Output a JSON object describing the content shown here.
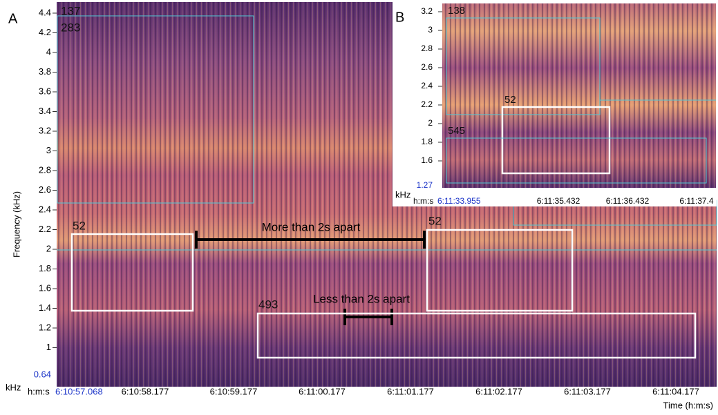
{
  "panel_a": {
    "label": "A",
    "y_axis_title": "Frequency (kHz)",
    "y_unit": "kHz",
    "y_ticks": [
      "4.4",
      "4.2",
      "4",
      "3.8",
      "3.6",
      "3.4",
      "3.2",
      "3",
      "2.8",
      "2.6",
      "2.4",
      "2.2",
      "2",
      "1.8",
      "1.6",
      "1.4",
      "1.2",
      "1"
    ],
    "y_min_label": "0.64",
    "x_unit_label": "h:m:s",
    "x_start_label": "6:10:57.068",
    "x_ticks": [
      "6:10:58.177",
      "6:10:59.177",
      "6:11:00.177",
      "6:11:01.177",
      "6:11:02.177",
      "6:11:03.177",
      "6:11:04.177"
    ],
    "x_axis_title": "Time (h:m:s)",
    "boxes": [
      {
        "label": "137"
      },
      {
        "label": "283"
      },
      {
        "label": "52"
      },
      {
        "label": "52"
      },
      {
        "label": "493"
      }
    ],
    "annotations": [
      "More than 2s apart",
      "Less than 2s apart"
    ]
  },
  "panel_b": {
    "label": "B",
    "y_unit": "kHz",
    "y_ticks": [
      "3.2",
      "3",
      "2.8",
      "2.6",
      "2.4",
      "2.2",
      "2",
      "1.8",
      "1.6"
    ],
    "y_min_label": "1.27",
    "x_unit_label": "h:m:s",
    "x_start_label": "6:11:33.955",
    "x_ticks": [
      "6:11:35.432",
      "6:11:36.432",
      "6:11:37.4"
    ],
    "boxes": [
      {
        "label": "138"
      },
      {
        "label": "52"
      },
      {
        "label": "545"
      }
    ]
  }
}
